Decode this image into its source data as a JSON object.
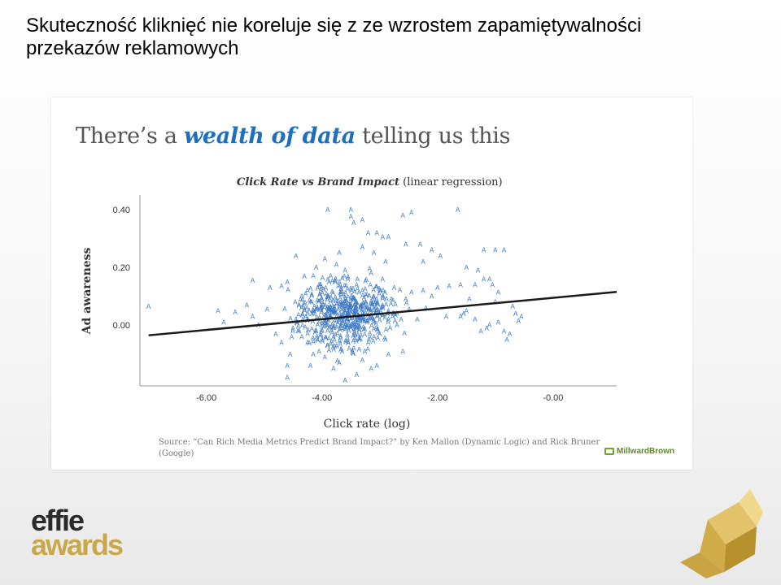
{
  "slide": {
    "title_line1": "Skuteczność kliknięć nie koreluje się z ze wzrostem zapamiętywalności",
    "title_line2": "przekazów reklamowych"
  },
  "panel": {
    "headline_pre": "There’s a ",
    "headline_em": "wealth of data",
    "headline_post": " telling us this",
    "source": "Source: “Can Rich Media Metrics Predict Brand Impact?” by Ken Mallon (Dynamic Logic) and Rick Bruner (Google)",
    "logo_text": "MillwardBrown"
  },
  "branding": {
    "effie_line1": "effie",
    "effie_line2": "awards"
  },
  "colors": {
    "point": "#3b78c8",
    "trend": "#1a1a1a",
    "axis": "#999999"
  },
  "chart_data": {
    "type": "scatter",
    "title_em": "Click Rate vs Brand Impact",
    "title_rest": " (linear regression)",
    "xlabel": "Click rate (log)",
    "ylabel": "Ad awareness",
    "marker": "A",
    "xlim": [
      -7.15,
      1.1
    ],
    "ylim": [
      -0.21,
      0.45
    ],
    "x_ticks": [
      -6,
      -4,
      -2,
      0
    ],
    "x_tick_labels": [
      "-6.00",
      "-4.00",
      "-2.00",
      "-0.00"
    ],
    "y_ticks": [
      0.4,
      0.2,
      0.0
    ],
    "y_tick_labels": [
      "0.40",
      "0.20",
      "0.00"
    ],
    "trend_line": {
      "x": [
        -7.0,
        1.1
      ],
      "y": [
        -0.035,
        0.115
      ]
    },
    "points": [
      [
        -7.0,
        0.065
      ],
      [
        -5.8,
        0.05
      ],
      [
        -5.5,
        0.045
      ],
      [
        -5.7,
        0.01
      ],
      [
        -5.3,
        0.07
      ],
      [
        -5.1,
        0.0
      ],
      [
        -5.2,
        0.03
      ],
      [
        -4.95,
        0.055
      ],
      [
        -4.7,
        0.135
      ],
      [
        -4.9,
        0.13
      ],
      [
        -4.6,
        0.15
      ],
      [
        -5.2,
        0.155
      ],
      [
        -4.45,
        0.24
      ],
      [
        -4.8,
        -0.03
      ],
      [
        -4.7,
        -0.06
      ],
      [
        -4.55,
        -0.1
      ],
      [
        -4.6,
        -0.14
      ],
      [
        -4.6,
        -0.18
      ],
      [
        -4.2,
        -0.14
      ],
      [
        -3.95,
        -0.11
      ],
      [
        -4.05,
        -0.09
      ],
      [
        -4.15,
        -0.1
      ],
      [
        -3.8,
        -0.15
      ],
      [
        -3.7,
        -0.13
      ],
      [
        -3.6,
        -0.19
      ],
      [
        -3.4,
        -0.17
      ],
      [
        -3.3,
        -0.12
      ],
      [
        -3.15,
        -0.15
      ],
      [
        -3.05,
        -0.14
      ],
      [
        -2.85,
        -0.1
      ],
      [
        -2.6,
        -0.09
      ],
      [
        -3.9,
        0.4
      ],
      [
        -3.5,
        0.4
      ],
      [
        -3.45,
        0.355
      ],
      [
        -3.5,
        0.375
      ],
      [
        -3.3,
        0.365
      ],
      [
        -3.2,
        0.32
      ],
      [
        -3.05,
        0.32
      ],
      [
        -2.95,
        0.305
      ],
      [
        -2.85,
        0.305
      ],
      [
        -2.6,
        0.38
      ],
      [
        -2.45,
        0.39
      ],
      [
        -2.55,
        0.28
      ],
      [
        -2.3,
        0.28
      ],
      [
        -2.1,
        0.26
      ],
      [
        -2.25,
        0.22
      ],
      [
        -1.95,
        0.24
      ],
      [
        -2.0,
        0.13
      ],
      [
        -1.8,
        0.135
      ],
      [
        -1.65,
        0.4
      ],
      [
        -1.5,
        0.2
      ],
      [
        -1.3,
        0.19
      ],
      [
        -1.2,
        0.16
      ],
      [
        -1.1,
        0.16
      ],
      [
        -1.05,
        0.14
      ],
      [
        -0.95,
        0.115
      ],
      [
        -1.35,
        0.14
      ],
      [
        -1.6,
        0.14
      ],
      [
        -2.1,
        0.1
      ],
      [
        -2.25,
        0.12
      ],
      [
        -2.45,
        0.115
      ],
      [
        -2.55,
        0.09
      ],
      [
        -2.2,
        0.06
      ],
      [
        -2.35,
        0.02
      ],
      [
        -1.2,
        0.26
      ],
      [
        -1.0,
        0.26
      ],
      [
        -0.85,
        0.26
      ],
      [
        -1.5,
        0.05
      ],
      [
        -1.35,
        0.02
      ],
      [
        -1.25,
        -0.02
      ],
      [
        -1.15,
        -0.01
      ],
      [
        -1.1,
        0.0
      ],
      [
        -0.95,
        0.01
      ],
      [
        -0.85,
        -0.02
      ],
      [
        -0.75,
        -0.03
      ],
      [
        -0.8,
        -0.05
      ],
      [
        -0.65,
        0.04
      ],
      [
        -0.55,
        0.03
      ],
      [
        -0.6,
        0.015
      ],
      [
        -0.7,
        0.065
      ],
      [
        -1.0,
        0.08
      ],
      [
        -1.45,
        0.09
      ],
      [
        -1.55,
        0.04
      ],
      [
        -1.85,
        0.03
      ],
      [
        -1.6,
        0.03
      ],
      [
        -3.3,
        0.27
      ],
      [
        -3.1,
        0.25
      ],
      [
        -2.9,
        0.22
      ],
      [
        -4.1,
        0.2
      ],
      [
        -3.95,
        0.23
      ],
      [
        -3.7,
        0.25
      ],
      [
        -3.6,
        0.19
      ],
      [
        -3.75,
        0.21
      ],
      [
        -3.15,
        0.18
      ],
      [
        -2.95,
        0.16
      ],
      [
        -3.0,
        0.12
      ],
      [
        -2.75,
        0.13
      ],
      [
        -2.8,
        0.09
      ],
      [
        -4.25,
        0.12
      ],
      [
        -4.35,
        0.1
      ],
      [
        -4.4,
        0.07
      ],
      [
        -4.3,
        0.05
      ],
      [
        -4.45,
        0.02
      ],
      [
        -4.5,
        -0.01
      ],
      [
        -4.35,
        -0.04
      ],
      [
        -4.25,
        -0.06
      ],
      [
        -4.1,
        -0.02
      ],
      [
        -4.0,
        -0.05
      ],
      [
        -3.9,
        -0.07
      ],
      [
        -3.8,
        -0.04
      ],
      [
        -3.65,
        -0.09
      ],
      [
        -3.55,
        -0.06
      ],
      [
        -3.45,
        -0.08
      ],
      [
        -3.35,
        -0.05
      ],
      [
        -3.2,
        -0.06
      ],
      [
        -3.1,
        -0.04
      ],
      [
        -3.0,
        -0.03
      ],
      [
        -2.9,
        -0.05
      ],
      [
        -2.85,
        0.02
      ],
      [
        -2.75,
        0.04
      ],
      [
        -2.7,
        0.0
      ],
      [
        -3.25,
        0.08
      ],
      [
        -3.1,
        0.06
      ],
      [
        -3.05,
        0.03
      ],
      [
        -2.95,
        0.07
      ],
      [
        -2.85,
        0.05
      ],
      [
        -4.15,
        0.17
      ],
      [
        -4.05,
        0.14
      ],
      [
        -3.85,
        0.17
      ],
      [
        -3.7,
        0.15
      ],
      [
        -3.55,
        0.16
      ],
      [
        -3.4,
        0.14
      ],
      [
        -3.3,
        0.12
      ]
    ]
  }
}
